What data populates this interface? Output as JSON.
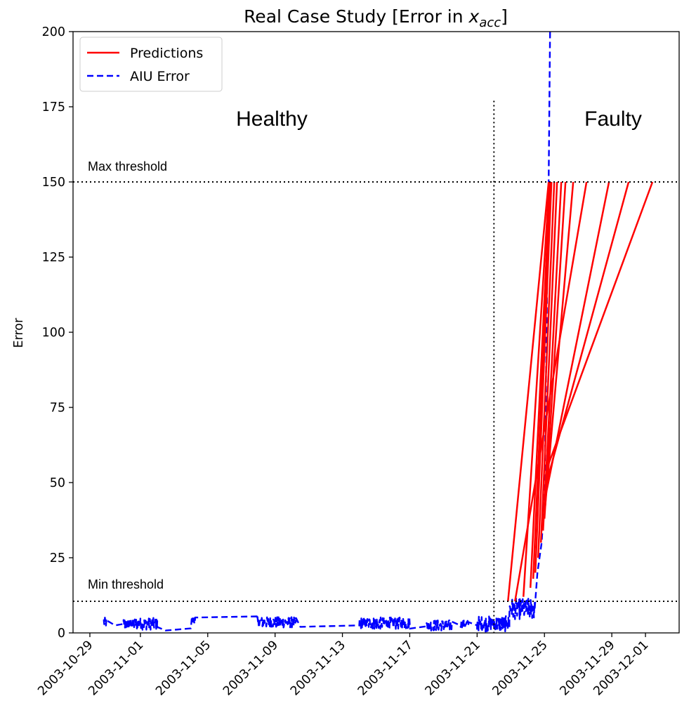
{
  "chart_data": {
    "type": "line",
    "title": {
      "prefix": "Real Case Study [Error in ",
      "var": "x",
      "sub": "acc",
      "suffix": "]"
    },
    "ylabel": "Error",
    "xlabel": "",
    "ylim": [
      0,
      200
    ],
    "xlim": [
      "2003-10-28",
      "2003-12-03"
    ],
    "y_ticks": [
      0,
      25,
      50,
      75,
      100,
      125,
      150,
      175,
      200
    ],
    "x_ticks": [
      "2003-10-29",
      "2003-11-01",
      "2003-11-05",
      "2003-11-09",
      "2003-11-13",
      "2003-11-17",
      "2003-11-21",
      "2003-11-25",
      "2003-11-29",
      "2003-12-01"
    ],
    "grid": false,
    "legend_placement": "top-left",
    "legend": [
      {
        "label": "Predictions",
        "color": "#ff0000",
        "style": "solid"
      },
      {
        "label": "AIU Error",
        "color": "#0000ff",
        "style": "dashed"
      }
    ],
    "annotations": {
      "healthy": "Healthy",
      "faulty": "Faulty",
      "max_threshold": "Max threshold",
      "min_threshold": "Min threshold"
    },
    "thresholds": {
      "max": 150,
      "min": 10.5
    },
    "fault_boundary": {
      "x": "2003-11-22T00:00",
      "y_top": 177
    },
    "series": [
      {
        "name": "AIU Error",
        "color": "#0000ff",
        "style": "dashed",
        "segments": [
          {
            "start": "2003-10-29T20:00",
            "end": "2003-10-30T00:00",
            "noise": 1.6,
            "level": 3.5
          },
          {
            "start": "2003-10-31T00:00",
            "end": "2003-11-02T00:00",
            "noise": 2.0,
            "level": 3.0
          },
          {
            "start": "2003-11-04T01:00",
            "end": "2003-11-04T06:00",
            "noise": 1.5,
            "level": 4.5
          },
          {
            "start": "2003-11-07T22:00",
            "end": "2003-11-10T06:00",
            "noise": 1.8,
            "level": 3.5
          },
          {
            "start": "2003-11-14T00:00",
            "end": "2003-11-17T00:00",
            "noise": 2.0,
            "level": 3.2
          },
          {
            "start": "2003-11-18T00:00",
            "end": "2003-11-19T12:00",
            "noise": 1.8,
            "level": 2.5
          },
          {
            "start": "2003-11-20T00:00",
            "end": "2003-11-20T12:00",
            "noise": 1.2,
            "level": 3.0
          },
          {
            "start": "2003-11-21T00:00",
            "end": "2003-11-22T22:00",
            "noise": 2.6,
            "level": 3.0
          },
          {
            "start": "2003-11-22T22:00",
            "end": "2003-11-24T10:00",
            "noise": 3.5,
            "level": 8.0
          }
        ],
        "points": [
          [
            "2003-10-29T20:00",
            4.5
          ],
          [
            "2003-10-30T12:00",
            2.5
          ],
          [
            "2003-10-31T00:00",
            3.0
          ],
          [
            "2003-11-02T00:00",
            4.0
          ],
          [
            "2003-11-02T12:00",
            0.8
          ],
          [
            "2003-11-04T00:00",
            1.5
          ],
          [
            "2003-11-04T06:00",
            4.5
          ],
          [
            "2003-11-07T22:00",
            5.5
          ],
          [
            "2003-11-10T06:00",
            3.5
          ],
          [
            "2003-11-10T12:00",
            2.0
          ],
          [
            "2003-11-14T00:00",
            2.5
          ],
          [
            "2003-11-17T00:00",
            3.0
          ],
          [
            "2003-11-18T00:00",
            2.2
          ],
          [
            "2003-11-19T12:00",
            3.5
          ],
          [
            "2003-11-20T00:00",
            2.5
          ],
          [
            "2003-11-21T00:00",
            2.5
          ],
          [
            "2003-11-22T22:00",
            5.0
          ],
          [
            "2003-11-24T10:00",
            10.0
          ],
          [
            "2003-11-24T14:00",
            20.0
          ],
          [
            "2003-11-24T20:00",
            30.0
          ],
          [
            "2003-11-25T00:00",
            45.0
          ],
          [
            "2003-11-25T02:00",
            80.0
          ],
          [
            "2003-11-25T04:00",
            120.0
          ],
          [
            "2003-11-25T06:00",
            150.0
          ],
          [
            "2003-11-25T08:00",
            200.0
          ]
        ]
      },
      {
        "name": "Predictions",
        "color": "#ff0000",
        "style": "solid",
        "lines": [
          [
            [
              "2003-11-22T20:00",
              10.5
            ],
            [
              "2003-11-25T06:00",
              150
            ]
          ],
          [
            [
              "2003-11-23T18:00",
              12
            ],
            [
              "2003-11-25T07:00",
              150
            ]
          ],
          [
            [
              "2003-11-24T04:00",
              15
            ],
            [
              "2003-11-25T08:00",
              150
            ]
          ],
          [
            [
              "2003-11-24T08:00",
              18
            ],
            [
              "2003-11-25T09:00",
              150
            ]
          ],
          [
            [
              "2003-11-24T11:00",
              20
            ],
            [
              "2003-11-25T10:00",
              150
            ]
          ],
          [
            [
              "2003-11-24T15:00",
              25
            ],
            [
              "2003-11-25T14:00",
              150
            ]
          ],
          [
            [
              "2003-11-24T19:00",
              30
            ],
            [
              "2003-11-25T18:00",
              150
            ]
          ],
          [
            [
              "2003-11-24T22:00",
              34
            ],
            [
              "2003-11-26T00:00",
              150
            ]
          ],
          [
            [
              "2003-11-25T00:00",
              38
            ],
            [
              "2003-11-26T06:00",
              150
            ]
          ],
          [
            [
              "2003-11-25T01:00",
              42
            ],
            [
              "2003-11-26T17:00",
              150
            ]
          ],
          [
            [
              "2003-11-23T06:00",
              10.5
            ],
            [
              "2003-11-27T12:00",
              150
            ]
          ],
          [
            [
              "2003-11-25T02:00",
              46
            ],
            [
              "2003-11-28T20:00",
              150
            ]
          ],
          [
            [
              "2003-11-25T03:00",
              50
            ],
            [
              "2003-11-30T00:00",
              150
            ]
          ],
          [
            [
              "2003-11-25T04:00",
              55
            ],
            [
              "2003-12-01T10:00",
              150
            ]
          ]
        ]
      }
    ]
  }
}
